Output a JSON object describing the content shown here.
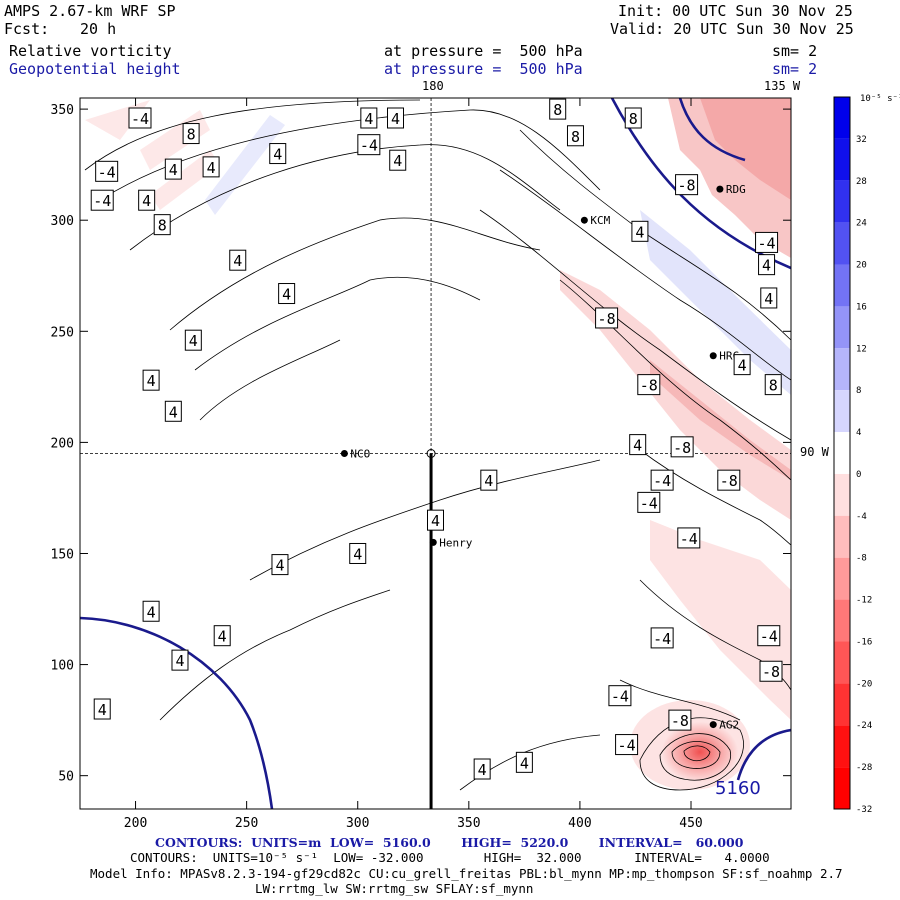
{
  "header": {
    "model": "AMPS 2.67-km WRF SP",
    "fcst_label": "Fcst:",
    "fcst_value": "20 h",
    "init": "Init: 00 UTC Sun 30 Nov 25",
    "valid": "Valid: 20 UTC Sun 30 Nov 25",
    "field1": "Relative vorticity",
    "field1_level": "at pressure =  500 hPa",
    "field1_sm": "sm= 2",
    "field2": "Geopotential height",
    "field2_level": "at pressure =  500 hPa",
    "field2_sm": "sm= 2"
  },
  "map": {
    "lon_label_top": "180",
    "lon_label_top_right": "135 W",
    "lon_label_right": "90 W",
    "height_contour_label": "5160",
    "stations": [
      "RDG",
      "KCM",
      "HRC",
      "NCO",
      "Henry",
      "AG2"
    ]
  },
  "chart_data": {
    "type": "contour",
    "xlim": [
      175,
      495
    ],
    "ylim": [
      35,
      355
    ],
    "xticks": [
      200,
      250,
      300,
      350,
      400,
      450
    ],
    "yticks": [
      50,
      100,
      150,
      200,
      250,
      300,
      350
    ],
    "crosshair": {
      "x": 333,
      "y": 195
    },
    "stations": [
      {
        "name": "RDG",
        "x": 463,
        "y": 314
      },
      {
        "name": "KCM",
        "x": 402,
        "y": 300
      },
      {
        "name": "HRC",
        "x": 460,
        "y": 239
      },
      {
        "name": "NCO",
        "x": 294,
        "y": 195
      },
      {
        "name": "Henry",
        "x": 334,
        "y": 155
      },
      {
        "name": "AG2",
        "x": 460,
        "y": 73
      }
    ],
    "contour_labels": [
      {
        "t": "-4",
        "x": 202,
        "y": 346
      },
      {
        "t": "8",
        "x": 225,
        "y": 339
      },
      {
        "t": "4",
        "x": 217,
        "y": 323
      },
      {
        "t": "4",
        "x": 234,
        "y": 324
      },
      {
        "t": "-4",
        "x": 187,
        "y": 322
      },
      {
        "t": "-4",
        "x": 185,
        "y": 309
      },
      {
        "t": "4",
        "x": 205,
        "y": 309
      },
      {
        "t": "8",
        "x": 212,
        "y": 298
      },
      {
        "t": "4",
        "x": 246,
        "y": 282
      },
      {
        "t": "4",
        "x": 264,
        "y": 330
      },
      {
        "t": "4",
        "x": 305,
        "y": 346
      },
      {
        "t": "-4",
        "x": 305,
        "y": 334
      },
      {
        "t": "4",
        "x": 317,
        "y": 346
      },
      {
        "t": "4",
        "x": 318,
        "y": 327
      },
      {
        "t": "4",
        "x": 268,
        "y": 267
      },
      {
        "t": "4",
        "x": 226,
        "y": 246
      },
      {
        "t": "4",
        "x": 207,
        "y": 228
      },
      {
        "t": "4",
        "x": 217,
        "y": 214
      },
      {
        "t": "8",
        "x": 390,
        "y": 350
      },
      {
        "t": "8",
        "x": 398,
        "y": 338
      },
      {
        "t": "8",
        "x": 424,
        "y": 346
      },
      {
        "t": "-8",
        "x": 448,
        "y": 316
      },
      {
        "t": "4",
        "x": 427,
        "y": 295
      },
      {
        "t": "-4",
        "x": 484,
        "y": 290
      },
      {
        "t": "4",
        "x": 484,
        "y": 280
      },
      {
        "t": "4",
        "x": 485,
        "y": 265
      },
      {
        "t": "-8",
        "x": 412,
        "y": 256
      },
      {
        "t": "4",
        "x": 473,
        "y": 235
      },
      {
        "t": "-8",
        "x": 431,
        "y": 226
      },
      {
        "t": "8",
        "x": 487,
        "y": 226
      },
      {
        "t": "4",
        "x": 426,
        "y": 199
      },
      {
        "t": "-8",
        "x": 446,
        "y": 198
      },
      {
        "t": "-8",
        "x": 467,
        "y": 183
      },
      {
        "t": "-4",
        "x": 437,
        "y": 183
      },
      {
        "t": "4",
        "x": 359,
        "y": 183
      },
      {
        "t": "-4",
        "x": 431,
        "y": 173
      },
      {
        "t": "-4",
        "x": 449,
        "y": 157
      },
      {
        "t": "4",
        "x": 335,
        "y": 165
      },
      {
        "t": "4",
        "x": 300,
        "y": 150
      },
      {
        "t": "4",
        "x": 265,
        "y": 145
      },
      {
        "t": "4",
        "x": 207,
        "y": 124
      },
      {
        "t": "4",
        "x": 239,
        "y": 113
      },
      {
        "t": "-4",
        "x": 437,
        "y": 112
      },
      {
        "t": "-4",
        "x": 485,
        "y": 113
      },
      {
        "t": "4",
        "x": 220,
        "y": 102
      },
      {
        "t": "-8",
        "x": 486,
        "y": 97
      },
      {
        "t": "4",
        "x": 185,
        "y": 80
      },
      {
        "t": "-4",
        "x": 418,
        "y": 86
      },
      {
        "t": "-8",
        "x": 445,
        "y": 75
      },
      {
        "t": "-4",
        "x": 421,
        "y": 64
      },
      {
        "t": "4",
        "x": 356,
        "y": 53
      },
      {
        "t": "4",
        "x": 375,
        "y": 56
      }
    ],
    "colorbar": {
      "title": "10⁻⁵ s⁻¹",
      "ticks": [
        "32",
        "28",
        "24",
        "20",
        "16",
        "12",
        "8",
        "4",
        "0",
        "-4",
        "-8",
        "-12",
        "-16",
        "-20",
        "-24",
        "-28",
        "-32"
      ]
    }
  },
  "footer": {
    "line1": "CONTOURS:  UNITS=m  LOW=  5160.0       HIGH=  5220.0       INTERVAL=   60.000",
    "line2": "CONTOURS:  UNITS=10⁻⁵ s⁻¹  LOW= -32.000        HIGH=  32.000       INTERVAL=   4.0000",
    "line3": "Model Info: MPASv8.2.3-194-gf29cd82c CU:cu_grell_freitas PBL:bl_mynn MP:mp_thompson SF:sf_noahmp 2.7",
    "line4": "LW:rrtmg_lw SW:rrtmg_sw SFLAY:sf_mynn"
  },
  "colors": {
    "height_contour": "#1a1a8c",
    "positive": "#2020e0",
    "negative": "#e02020",
    "axis": "#000000"
  }
}
